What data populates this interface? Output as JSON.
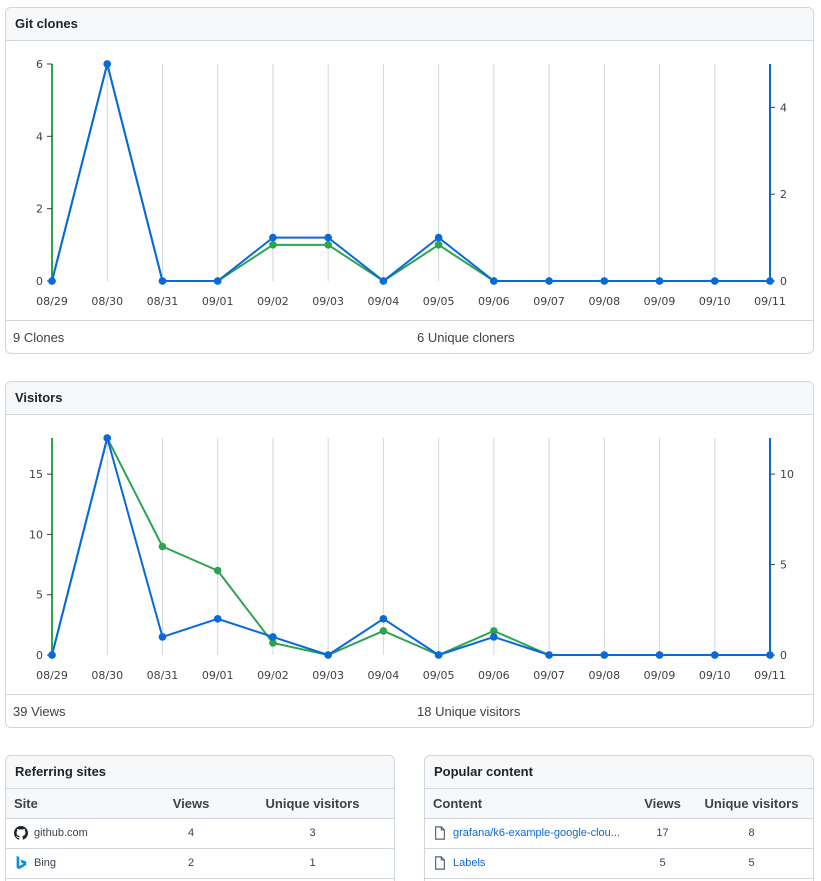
{
  "clones": {
    "title": "Git clones",
    "total_label": "9 Clones",
    "unique_label": "6 Unique cloners"
  },
  "visitors": {
    "title": "Visitors",
    "total_label": "39 Views",
    "unique_label": "18 Unique visitors"
  },
  "colors": {
    "total": "#2da44e",
    "unique": "#0969da",
    "grid": "#d0d7de"
  },
  "chart_data": [
    {
      "type": "line",
      "x": [
        "08/29",
        "08/30",
        "08/31",
        "09/01",
        "09/02",
        "09/03",
        "09/04",
        "09/05",
        "09/06",
        "09/07",
        "09/08",
        "09/09",
        "09/10",
        "09/11"
      ],
      "series": [
        {
          "name": "Clones",
          "axis": "left",
          "color": "#2da44e",
          "values": [
            0,
            6,
            0,
            0,
            1,
            1,
            0,
            1,
            0,
            0,
            0,
            0,
            0,
            0
          ]
        },
        {
          "name": "Unique cloners",
          "axis": "right",
          "color": "#0969da",
          "values": [
            0,
            5,
            0,
            0,
            1,
            1,
            0,
            1,
            0,
            0,
            0,
            0,
            0,
            0
          ]
        }
      ],
      "left_ticks": [
        0,
        2,
        4,
        6
      ],
      "left_range": [
        0,
        6
      ],
      "right_ticks": [
        0,
        2,
        4
      ],
      "right_range": [
        0,
        5
      ]
    },
    {
      "type": "line",
      "x": [
        "08/29",
        "08/30",
        "08/31",
        "09/01",
        "09/02",
        "09/03",
        "09/04",
        "09/05",
        "09/06",
        "09/07",
        "09/08",
        "09/09",
        "09/10",
        "09/11"
      ],
      "series": [
        {
          "name": "Views",
          "axis": "left",
          "color": "#2da44e",
          "values": [
            0,
            18,
            9,
            7,
            1,
            0,
            2,
            0,
            2,
            0,
            0,
            0,
            0,
            0
          ]
        },
        {
          "name": "Unique visitors",
          "axis": "right",
          "color": "#0969da",
          "values": [
            0,
            12,
            1,
            2,
            1,
            0,
            2,
            0,
            1,
            0,
            0,
            0,
            0,
            0
          ]
        }
      ],
      "left_ticks": [
        0,
        5,
        10,
        15
      ],
      "left_range": [
        0,
        18
      ],
      "right_ticks": [
        0,
        5,
        10
      ],
      "right_range": [
        0,
        12
      ]
    }
  ],
  "referring": {
    "title": "Referring sites",
    "columns": [
      "Site",
      "Views",
      "Unique visitors"
    ],
    "rows": [
      {
        "icon": "github-icon",
        "site": "github.com",
        "views": "4",
        "unique": "3"
      },
      {
        "icon": "bing-icon",
        "site": "Bing",
        "views": "2",
        "unique": "1"
      }
    ]
  },
  "popular": {
    "title": "Popular content",
    "columns": [
      "Content",
      "Views",
      "Unique visitors"
    ],
    "rows": [
      {
        "icon": "file-icon",
        "content": "grafana/k6-example-google-clou...",
        "views": "17",
        "unique": "8"
      },
      {
        "icon": "file-icon",
        "content": "Labels",
        "views": "5",
        "unique": "5"
      }
    ]
  }
}
